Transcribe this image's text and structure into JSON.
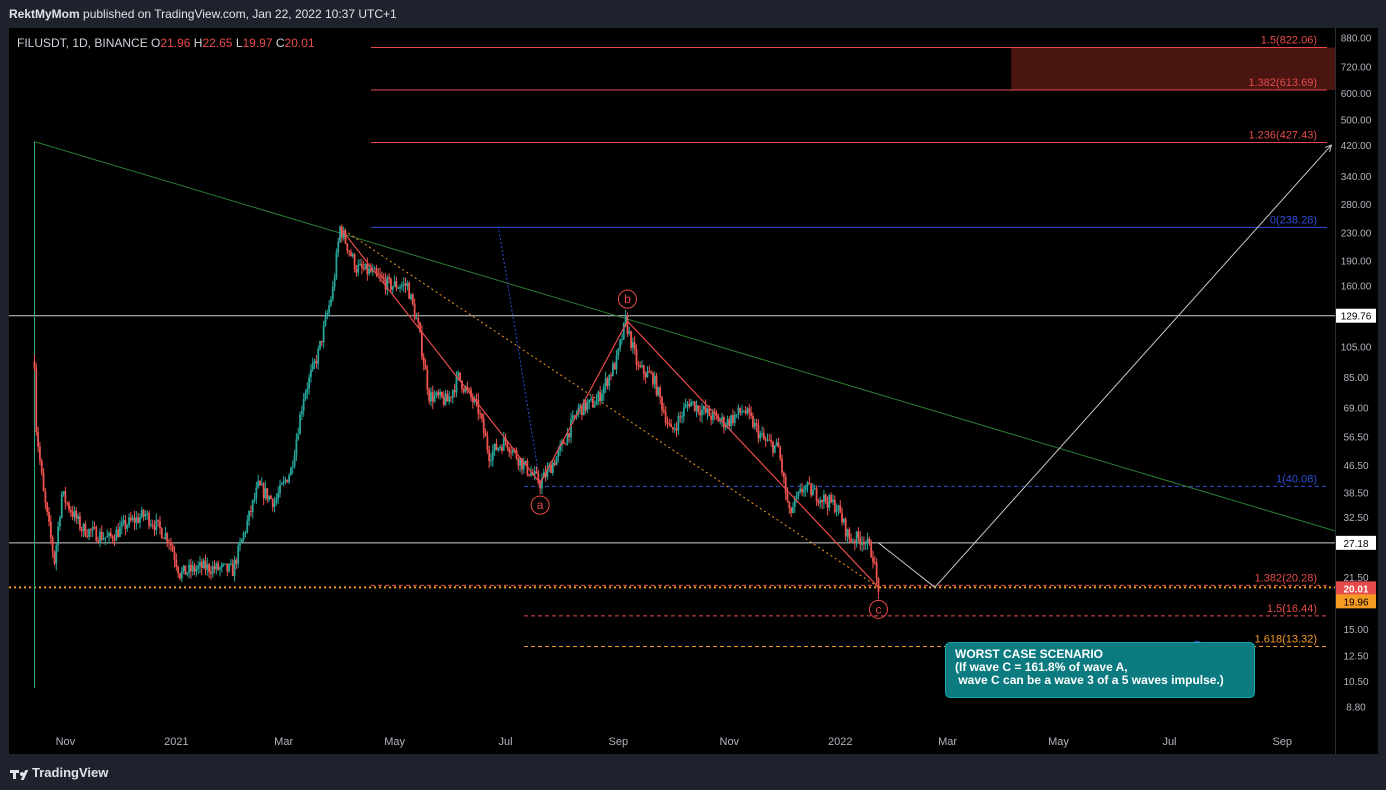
{
  "header": {
    "author": "RektMyMom",
    "published_text": "published on TradingView.com, Jan 22, 2022 10:37 UTC+1"
  },
  "legend": {
    "symbol": "FILUSDT, 1D, BINANCE",
    "o_label": "O",
    "o": "21.96",
    "h_label": "H",
    "h": "22.65",
    "l_label": "L",
    "l": "19.97",
    "c_label": "C",
    "c": "20.01"
  },
  "footer": {
    "brand": "TradingView"
  },
  "callout": {
    "text": "WORST CASE SCENARIO\n(If wave C = 161.8% of wave A,\n wave C can be a wave 3 of a 5 waves impulse.)"
  },
  "colors": {
    "background": "#000000",
    "red": "#e84b4b",
    "blue": "#2f4fd6",
    "green": "#2e7d32",
    "orange": "#f59a23",
    "gray": "#b2b5be",
    "teal_callout": "#0b7b80"
  },
  "chart_data": {
    "type": "candlestick",
    "symbol": "FILUSDT",
    "interval": "1D",
    "exchange": "BINANCE",
    "yscale": "log",
    "ylim": [
      7.6,
      940
    ],
    "xlim": [
      "2020-10-01",
      "2022-09-30"
    ],
    "y_ticks": [
      "880.00",
      "720.00",
      "600.00",
      "500.00",
      "420.00",
      "340.00",
      "280.00",
      "230.00",
      "190.00",
      "160.00",
      "129.76",
      "105.00",
      "85.00",
      "69.00",
      "56.50",
      "46.50",
      "38.50",
      "32.50",
      "27.18",
      "21.50",
      "20.01",
      "19.96",
      "15.00",
      "12.50",
      "10.50",
      "8.80"
    ],
    "x_ticks": [
      {
        "label": "Nov",
        "date": "2020-11-01"
      },
      {
        "label": "2021",
        "date": "2021-01-01"
      },
      {
        "label": "Mar",
        "date": "2021-03-01"
      },
      {
        "label": "May",
        "date": "2021-05-01"
      },
      {
        "label": "Jul",
        "date": "2021-07-01"
      },
      {
        "label": "Sep",
        "date": "2021-09-01"
      },
      {
        "label": "Nov",
        "date": "2021-11-01"
      },
      {
        "label": "2022",
        "date": "2022-01-01"
      },
      {
        "label": "Mar",
        "date": "2022-03-01"
      },
      {
        "label": "May",
        "date": "2022-05-01"
      },
      {
        "label": "Jul",
        "date": "2022-07-01"
      },
      {
        "label": "Sep",
        "date": "2022-09-01"
      }
    ],
    "price_path": [
      [
        "2020-10-15",
        95
      ],
      [
        "2020-10-16",
        60
      ],
      [
        "2020-10-20",
        38
      ],
      [
        "2020-10-26",
        24
      ],
      [
        "2020-10-30",
        38
      ],
      [
        "2020-11-10",
        30
      ],
      [
        "2020-11-25",
        28
      ],
      [
        "2020-12-05",
        31
      ],
      [
        "2020-12-15",
        33
      ],
      [
        "2020-12-28",
        28
      ],
      [
        "2021-01-03",
        22
      ],
      [
        "2021-01-15",
        23
      ],
      [
        "2021-02-01",
        22.5
      ],
      [
        "2021-02-08",
        30
      ],
      [
        "2021-02-15",
        40
      ],
      [
        "2021-02-24",
        36
      ],
      [
        "2021-03-05",
        45
      ],
      [
        "2021-03-12",
        75
      ],
      [
        "2021-03-20",
        100
      ],
      [
        "2021-03-28",
        155
      ],
      [
        "2021-04-01",
        238
      ],
      [
        "2021-04-10",
        180
      ],
      [
        "2021-04-18",
        175
      ],
      [
        "2021-04-28",
        160
      ],
      [
        "2021-05-08",
        160
      ],
      [
        "2021-05-14",
        120
      ],
      [
        "2021-05-20",
        75
      ],
      [
        "2021-05-30",
        72
      ],
      [
        "2021-06-05",
        85
      ],
      [
        "2021-06-16",
        68
      ],
      [
        "2021-06-22",
        50
      ],
      [
        "2021-07-01",
        55
      ],
      [
        "2021-07-10",
        47
      ],
      [
        "2021-07-20",
        41
      ],
      [
        "2021-07-30",
        50
      ],
      [
        "2021-08-10",
        68
      ],
      [
        "2021-08-20",
        72
      ],
      [
        "2021-08-31",
        95
      ],
      [
        "2021-09-05",
        125
      ],
      [
        "2021-09-12",
        90
      ],
      [
        "2021-09-20",
        85
      ],
      [
        "2021-09-30",
        58
      ],
      [
        "2021-10-10",
        72
      ],
      [
        "2021-10-20",
        66
      ],
      [
        "2021-10-30",
        62
      ],
      [
        "2021-11-09",
        68
      ],
      [
        "2021-11-20",
        55
      ],
      [
        "2021-11-28",
        52
      ],
      [
        "2021-12-04",
        33
      ],
      [
        "2021-12-12",
        40
      ],
      [
        "2021-12-22",
        37
      ],
      [
        "2021-12-30",
        35
      ],
      [
        "2022-01-06",
        28
      ],
      [
        "2022-01-14",
        28
      ],
      [
        "2022-01-19",
        25
      ],
      [
        "2022-01-21",
        21
      ],
      [
        "2022-01-22",
        20.01
      ]
    ],
    "horizontal_levels": [
      {
        "label": "1.5(822.06)",
        "value": 822.06,
        "color": "red",
        "style": "solid"
      },
      {
        "label": "1.382(613.69)",
        "value": 613.69,
        "color": "red",
        "style": "solid"
      },
      {
        "label": "1.236(427.43)",
        "value": 427.43,
        "color": "red",
        "style": "solid"
      },
      {
        "label": "0(238.28)",
        "value": 238.28,
        "color": "blue",
        "style": "solid"
      },
      {
        "label": "1(40.08)",
        "value": 40.08,
        "color": "blue",
        "style": "dashed"
      },
      {
        "label": "1.382(20.28)",
        "value": 20.28,
        "color": "red",
        "style": "dashed"
      },
      {
        "label": "1.5(16.44)",
        "value": 16.44,
        "color": "red",
        "style": "dashed"
      },
      {
        "label": "1.618(13.32)",
        "value": 13.32,
        "color": "orange",
        "style": "dashed"
      }
    ],
    "price_labels": [
      {
        "label": "129.76",
        "value": 129.76,
        "bg": "#ffffff",
        "fg": "#000000"
      },
      {
        "label": "27.18",
        "value": 27.18,
        "bg": "#ffffff",
        "fg": "#000000"
      },
      {
        "label": "20.01",
        "value": 20.01,
        "bg": "#e84b4b",
        "fg": "#ffffff"
      },
      {
        "label": "19.96",
        "value": 19.96,
        "bg": "#f59a23",
        "fg": "#000000"
      }
    ],
    "wave_labels": [
      {
        "label": "a",
        "date": "2021-07-20",
        "value": 41,
        "position": "below"
      },
      {
        "label": "b",
        "date": "2021-09-06",
        "value": 125,
        "position": "above"
      },
      {
        "label": "c",
        "date": "2022-01-22",
        "value": 20.01,
        "position": "below"
      }
    ],
    "abc_path": [
      [
        "2021-04-01",
        238
      ],
      [
        "2021-07-20",
        41
      ],
      [
        "2021-09-06",
        125
      ],
      [
        "2022-01-22",
        20.01
      ]
    ],
    "projection_path": [
      [
        "2022-01-22",
        27.18
      ],
      [
        "2022-02-22",
        20.01
      ],
      [
        "2022-09-28",
        420
      ]
    ],
    "trendline": [
      [
        "2020-10-15",
        430
      ],
      [
        "2022-09-30",
        29.5
      ]
    ],
    "vertical_line": {
      "date": "2020-10-15",
      "from": 10,
      "to": 430
    },
    "orange_dotted": [
      [
        "2021-04-01",
        238
      ],
      [
        "2022-01-22",
        20.01
      ]
    ],
    "blue_dotted": [
      [
        "2021-06-27",
        240
      ],
      [
        "2021-07-20",
        41
      ]
    ],
    "target_zone": {
      "from_date": "2022-04-05",
      "to_date": "2022-09-30",
      "low": 613.69,
      "high": 822.06
    }
  }
}
